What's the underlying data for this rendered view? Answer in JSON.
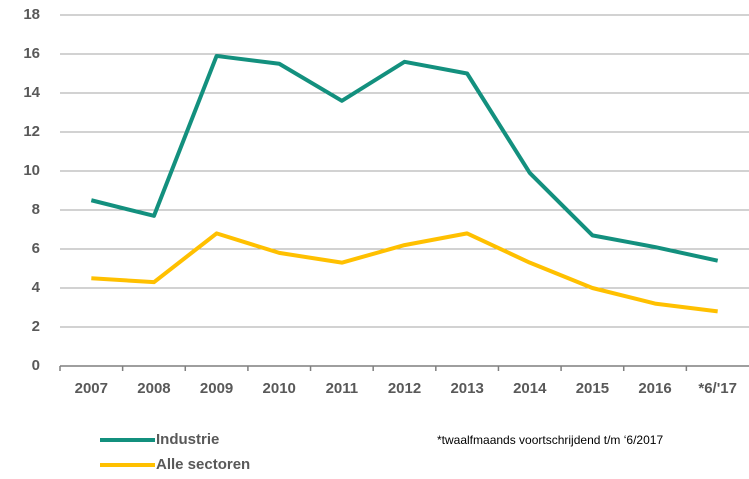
{
  "chart_data": {
    "type": "line",
    "categories": [
      "2007",
      "2008",
      "2009",
      "2010",
      "2011",
      "2012",
      "2013",
      "2014",
      "2015",
      "2016",
      "*6/'17"
    ],
    "series": [
      {
        "name": "Industrie",
        "color": "#13907e",
        "values": [
          8.5,
          7.7,
          15.9,
          15.5,
          13.6,
          15.6,
          15.0,
          9.9,
          6.7,
          6.1,
          5.4
        ]
      },
      {
        "name": "Alle sectoren",
        "color": "#ffc000",
        "values": [
          4.5,
          4.3,
          6.8,
          5.8,
          5.3,
          6.2,
          6.8,
          5.3,
          4.0,
          3.2,
          2.8
        ]
      }
    ],
    "ylim": [
      0,
      18
    ],
    "yticks": [
      0,
      2,
      4,
      6,
      8,
      10,
      12,
      14,
      16,
      18
    ],
    "grid": true,
    "note": "*twaalfmaands voortschrijdend t/m ‘6/2017"
  }
}
